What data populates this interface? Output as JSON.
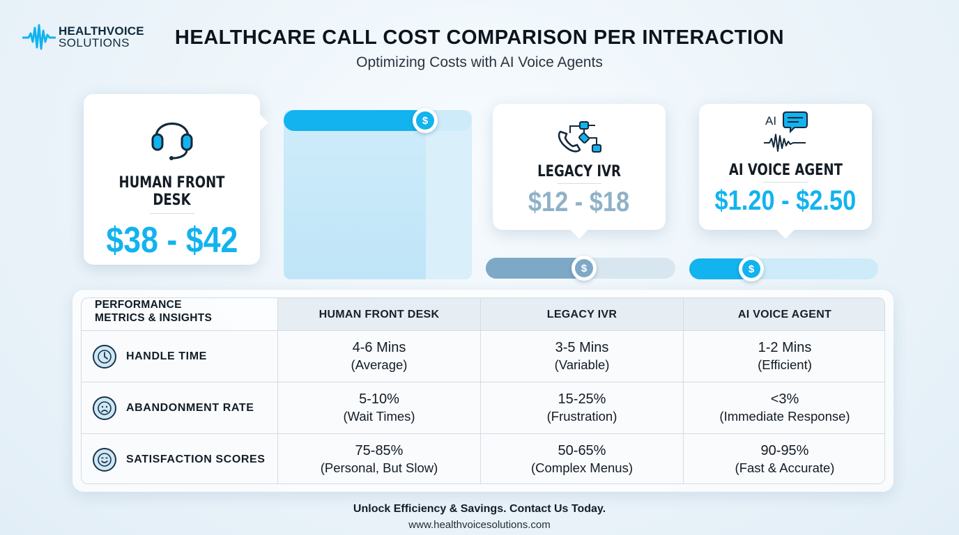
{
  "brand": {
    "line1": "HEALTHVOICE",
    "line2": "SOLUTIONS",
    "icon": "pulse-wave-icon",
    "accent": "#12b3ee"
  },
  "header": {
    "title": "HEALTHCARE CALL COST COMPARISON PER INTERACTION",
    "subtitle": "Optimizing Costs with AI Voice Agents"
  },
  "cards": {
    "human": {
      "icon": "headset-icon",
      "label": "HUMAN FRONT DESK",
      "price": "$38 - $42"
    },
    "ivr": {
      "icon": "phone-flowchart-icon",
      "label": "LEGACY IVR",
      "price": "$12 - $18"
    },
    "ai": {
      "icon": "ai-chat-waveform-icon",
      "icon_text": "AI",
      "label": "AI VOICE AGENT",
      "price": "$1.20 - $2.50"
    }
  },
  "cost_bars": {
    "knob_symbol": "$",
    "human": {
      "level_percent": 75,
      "color": "#12b3ee"
    },
    "ivr": {
      "level_percent": 52,
      "color": "#7ea9c6"
    },
    "ai": {
      "level_percent": 33,
      "color": "#12b3ee"
    }
  },
  "table": {
    "title_line1": "PERFORMANCE",
    "title_line2": "METRICS & INSIGHTS",
    "columns": [
      "HUMAN FRONT DESK",
      "LEGACY IVR",
      "AI VOICE AGENT"
    ],
    "rows": [
      {
        "icon": "clock-icon",
        "label": "HANDLE TIME",
        "cells": [
          {
            "value": "4-6 Mins",
            "note": "(Average)"
          },
          {
            "value": "3-5 Mins",
            "note": "(Variable)"
          },
          {
            "value": "1-2 Mins",
            "note": "(Efficient)"
          }
        ]
      },
      {
        "icon": "sad-face-icon",
        "label": "ABANDONMENT RATE",
        "cells": [
          {
            "value": "5-10%",
            "note": "(Wait Times)"
          },
          {
            "value": "15-25%",
            "note": "(Frustration)"
          },
          {
            "value": "<3%",
            "note": "(Immediate Response)"
          }
        ]
      },
      {
        "icon": "smile-face-icon",
        "label": "SATISFACTION SCORES",
        "cells": [
          {
            "value": "75-85%",
            "note": "(Personal, But Slow)"
          },
          {
            "value": "50-65%",
            "note": "(Complex Menus)"
          },
          {
            "value": "90-95%",
            "note": "(Fast & Accurate)"
          }
        ]
      }
    ]
  },
  "footer": {
    "cta": "Unlock Efficiency & Savings. Contact Us Today.",
    "url": "www.healthvoicesolutions.com"
  }
}
